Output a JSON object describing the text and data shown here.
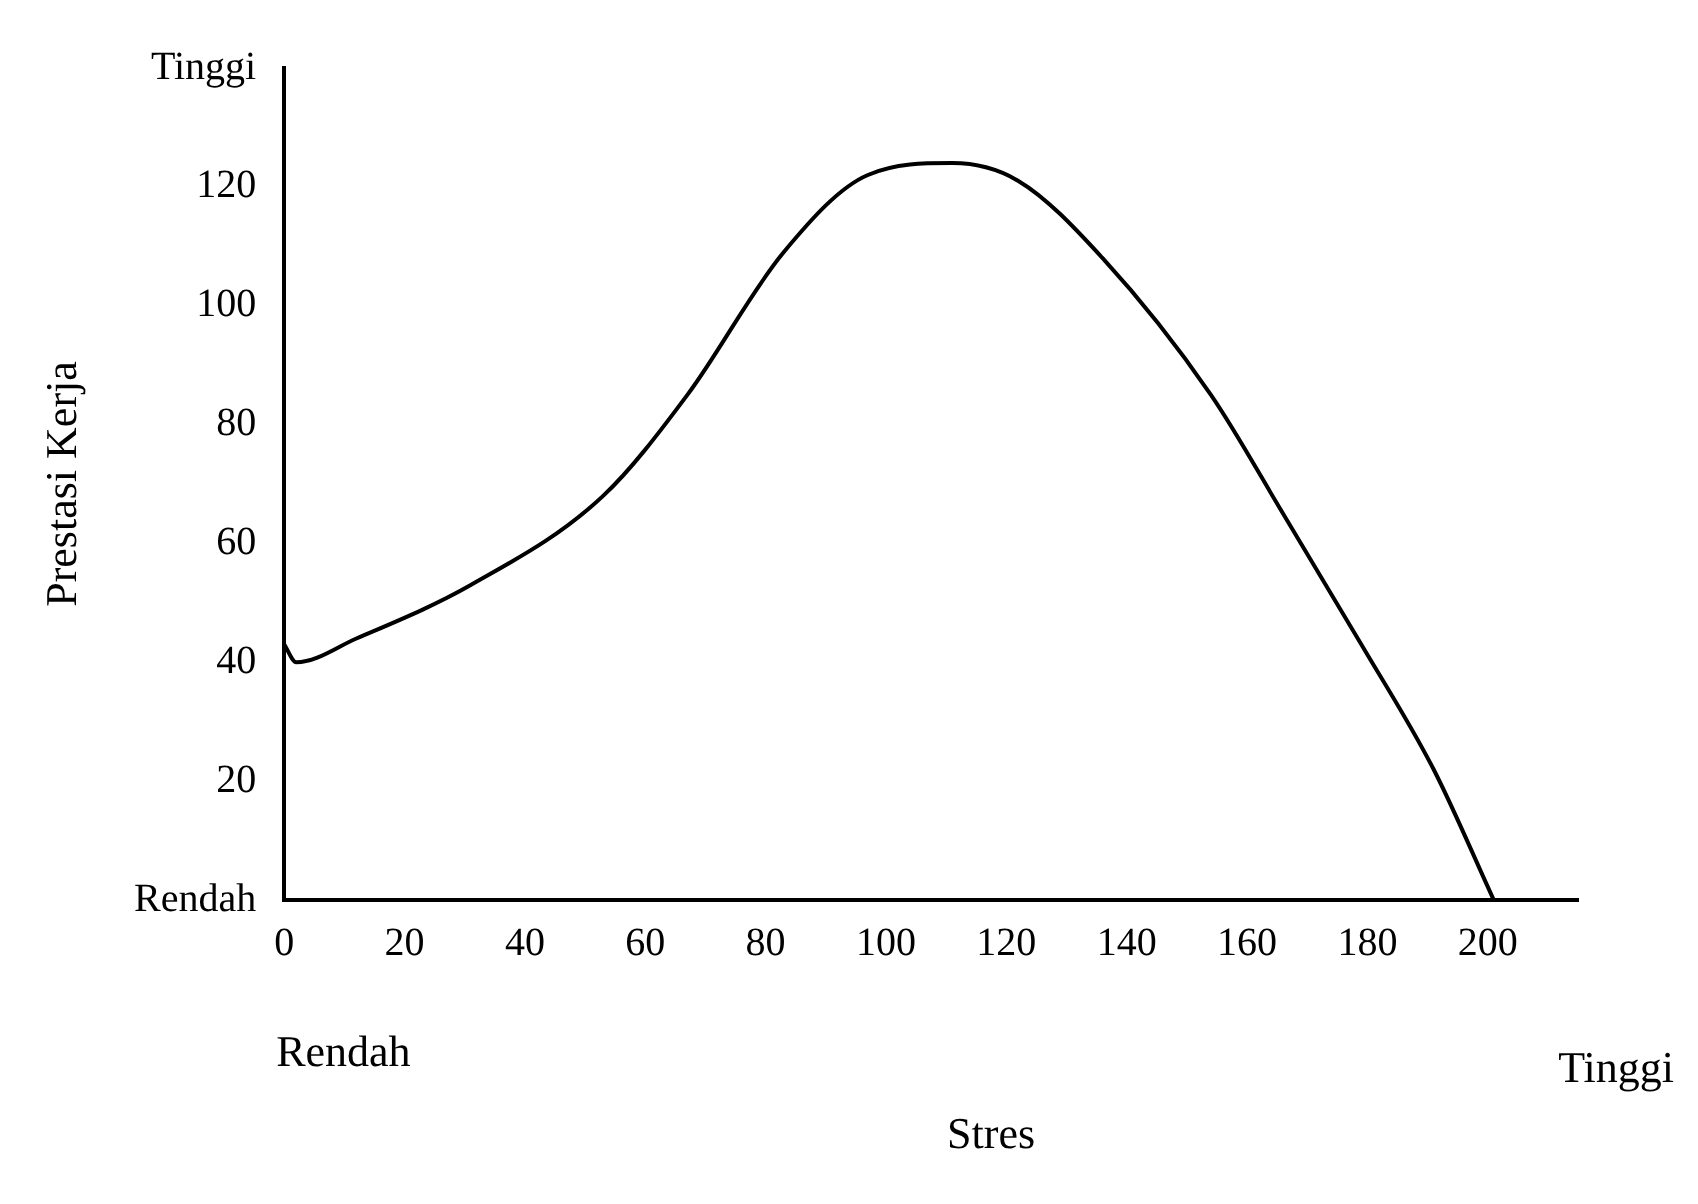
{
  "chart_data": {
    "type": "line",
    "xlabel": "Stres",
    "ylabel": "Prestasi Kerja",
    "annotations": [
      "Rendah",
      "Tinggi"
    ],
    "x": [
      0,
      2,
      12,
      31,
      53,
      67,
      83,
      97,
      111,
      122,
      136,
      154,
      166,
      179,
      191,
      201
    ],
    "values": [
      43,
      40,
      44,
      53,
      68,
      85,
      109,
      122,
      124,
      121,
      108,
      85,
      65,
      43,
      22,
      0
    ],
    "color": "#000000",
    "marker": "none",
    "line_style": "solid",
    "grid": false,
    "legend": false,
    "xlim": [
      0,
      215
    ],
    "xticks": [
      0,
      20,
      40,
      60,
      80,
      100,
      120,
      140,
      160,
      180,
      200
    ],
    "ylim": [
      0,
      140
    ],
    "yticks": [
      {
        "value": 0,
        "label": "Rendah"
      },
      20,
      40,
      60,
      80,
      100,
      120,
      {
        "value": 140,
        "label": "Tinggi"
      }
    ]
  }
}
